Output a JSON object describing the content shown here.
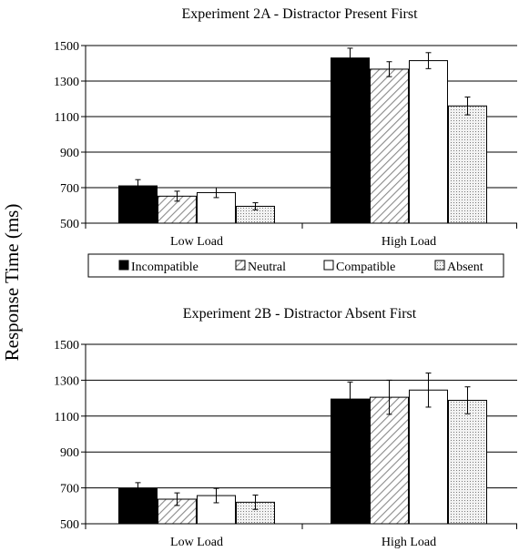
{
  "ylabel": "Response   Time   (ms)",
  "chart_data": [
    {
      "type": "bar",
      "title": "Experiment 2A - Distractor Present First",
      "categories": [
        "Low Load",
        "High Load"
      ],
      "ylim": [
        500,
        1500
      ],
      "yticks": [
        500,
        700,
        900,
        1100,
        1300,
        1500
      ],
      "grid": true,
      "series": [
        {
          "name": "Incompatible",
          "values": [
            710,
            1430
          ],
          "errors": [
            35,
            55
          ]
        },
        {
          "name": "Neutral",
          "values": [
            652,
            1367
          ],
          "errors": [
            28,
            42
          ]
        },
        {
          "name": "Compatible",
          "values": [
            672,
            1415
          ],
          "errors": [
            28,
            45
          ]
        },
        {
          "name": "Absent",
          "values": [
            595,
            1160
          ],
          "errors": [
            20,
            50
          ]
        }
      ]
    },
    {
      "type": "bar",
      "title": "Experiment 2B - Distractor Absent First",
      "categories": [
        "Low Load",
        "High Load"
      ],
      "ylim": [
        500,
        1500
      ],
      "yticks": [
        500,
        700,
        900,
        1100,
        1300,
        1500
      ],
      "grid": true,
      "series": [
        {
          "name": "Incompatible",
          "values": [
            697,
            1195
          ],
          "errors": [
            32,
            95
          ]
        },
        {
          "name": "Neutral",
          "values": [
            637,
            1205
          ],
          "errors": [
            35,
            95
          ]
        },
        {
          "name": "Compatible",
          "values": [
            657,
            1245
          ],
          "errors": [
            40,
            95
          ]
        },
        {
          "name": "Absent",
          "values": [
            620,
            1188
          ],
          "errors": [
            40,
            75
          ]
        }
      ]
    }
  ],
  "legend": {
    "placement": "between-panels",
    "items": [
      "Incompatible",
      "Neutral",
      "Compatible",
      "Absent"
    ]
  },
  "colors": {
    "incompatible": "#000000",
    "neutral": "#ffffff",
    "compatible": "#ffffff",
    "absent": "#eeeeee",
    "hatch": "#8a8a8a",
    "dots": "#7a7a7a",
    "grid": "#000000"
  }
}
